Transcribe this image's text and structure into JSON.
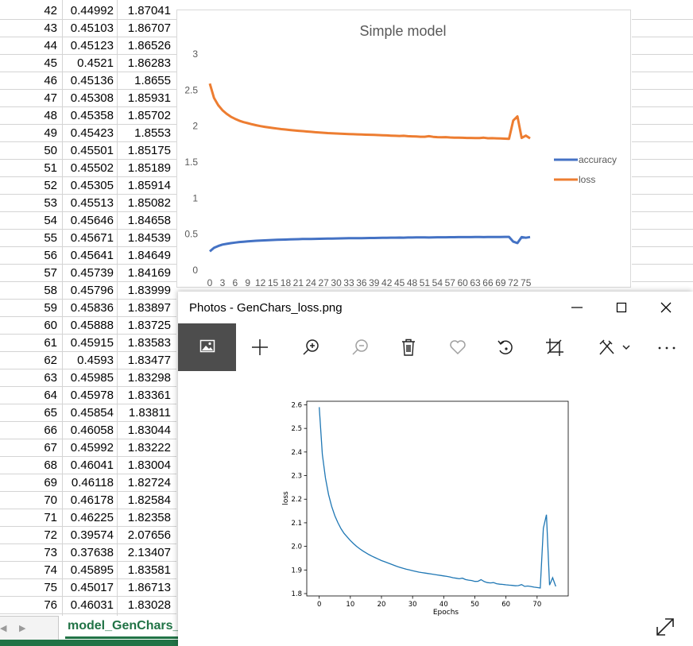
{
  "spreadsheet": {
    "rows": [
      [
        "42",
        "0.44992",
        "1.87041"
      ],
      [
        "43",
        "0.45103",
        "1.86707"
      ],
      [
        "44",
        "0.45123",
        "1.86526"
      ],
      [
        "45",
        "0.4521",
        "1.86283"
      ],
      [
        "46",
        "0.45136",
        "1.8655"
      ],
      [
        "47",
        "0.45308",
        "1.85931"
      ],
      [
        "48",
        "0.45358",
        "1.85702"
      ],
      [
        "49",
        "0.45423",
        "1.8553"
      ],
      [
        "50",
        "0.45501",
        "1.85175"
      ],
      [
        "51",
        "0.45502",
        "1.85189"
      ],
      [
        "52",
        "0.45305",
        "1.85914"
      ],
      [
        "53",
        "0.45513",
        "1.85082"
      ],
      [
        "54",
        "0.45646",
        "1.84658"
      ],
      [
        "55",
        "0.45671",
        "1.84539"
      ],
      [
        "56",
        "0.45641",
        "1.84649"
      ],
      [
        "57",
        "0.45739",
        "1.84169"
      ],
      [
        "58",
        "0.45796",
        "1.83999"
      ],
      [
        "59",
        "0.45836",
        "1.83897"
      ],
      [
        "60",
        "0.45888",
        "1.83725"
      ],
      [
        "61",
        "0.45915",
        "1.83583"
      ],
      [
        "62",
        "0.4593",
        "1.83477"
      ],
      [
        "63",
        "0.45985",
        "1.83298"
      ],
      [
        "64",
        "0.45978",
        "1.83361"
      ],
      [
        "65",
        "0.45854",
        "1.83811"
      ],
      [
        "66",
        "0.46058",
        "1.83044"
      ],
      [
        "67",
        "0.45992",
        "1.83222"
      ],
      [
        "68",
        "0.46041",
        "1.83004"
      ],
      [
        "69",
        "0.46118",
        "1.82724"
      ],
      [
        "70",
        "0.46178",
        "1.82584"
      ],
      [
        "71",
        "0.46225",
        "1.82358"
      ],
      [
        "72",
        "0.39574",
        "2.07656"
      ],
      [
        "73",
        "0.37638",
        "2.13407"
      ],
      [
        "74",
        "0.45895",
        "1.83581"
      ],
      [
        "75",
        "0.45017",
        "1.86713"
      ],
      [
        "76",
        "0.46031",
        "1.83028"
      ]
    ],
    "sheet_tab": "model_GenChars_",
    "tab_nav_prev_icon": "triangle-left-icon",
    "tab_nav_next_icon": "triangle-right-icon",
    "accent_color": "#217346"
  },
  "chart_data": [
    {
      "id": "excel",
      "type": "line",
      "title": "Simple model",
      "x": [
        0,
        1,
        2,
        3,
        4,
        5,
        6,
        7,
        8,
        9,
        10,
        11,
        12,
        13,
        14,
        15,
        16,
        17,
        18,
        19,
        20,
        21,
        22,
        23,
        24,
        25,
        26,
        27,
        28,
        29,
        30,
        31,
        32,
        33,
        34,
        35,
        36,
        37,
        38,
        39,
        40,
        41,
        42,
        43,
        44,
        45,
        46,
        47,
        48,
        49,
        50,
        51,
        52,
        53,
        54,
        55,
        56,
        57,
        58,
        59,
        60,
        61,
        62,
        63,
        64,
        65,
        66,
        67,
        68,
        69,
        70,
        71,
        72,
        73,
        74,
        75,
        76
      ],
      "x_tick_labels": [
        "0",
        "3",
        "6",
        "9",
        "12",
        "15",
        "18",
        "21",
        "24",
        "27",
        "30",
        "33",
        "36",
        "39",
        "42",
        "45",
        "48",
        "51",
        "54",
        "57",
        "60",
        "63",
        "66",
        "69",
        "72",
        "75"
      ],
      "ylim": [
        0,
        3
      ],
      "y_ticks": [
        "0",
        "0.5",
        "1",
        "1.5",
        "2",
        "2.5",
        "3"
      ],
      "legend_position": "right",
      "series": [
        {
          "name": "accuracy",
          "color": "#4472c4",
          "values": [
            0.26,
            0.31,
            0.335,
            0.355,
            0.365,
            0.375,
            0.383,
            0.39,
            0.395,
            0.4,
            0.404,
            0.408,
            0.411,
            0.414,
            0.417,
            0.419,
            0.421,
            0.423,
            0.425,
            0.427,
            0.429,
            0.43,
            0.432,
            0.433,
            0.434,
            0.435,
            0.436,
            0.437,
            0.438,
            0.439,
            0.44,
            0.441,
            0.442,
            0.443,
            0.444,
            0.444,
            0.445,
            0.446,
            0.447,
            0.447,
            0.448,
            0.449,
            0.44992,
            0.45103,
            0.45123,
            0.4521,
            0.45136,
            0.45308,
            0.45358,
            0.45423,
            0.45501,
            0.45502,
            0.45305,
            0.45513,
            0.45646,
            0.45671,
            0.45641,
            0.45739,
            0.45796,
            0.45836,
            0.45888,
            0.45915,
            0.4593,
            0.45985,
            0.45978,
            0.45854,
            0.46058,
            0.45992,
            0.46041,
            0.46118,
            0.46178,
            0.46225,
            0.39574,
            0.37638,
            0.45895,
            0.45017,
            0.46031
          ]
        },
        {
          "name": "loss",
          "color": "#ed7d31",
          "values": [
            2.59,
            2.39,
            2.29,
            2.22,
            2.17,
            2.13,
            2.1,
            2.075,
            2.055,
            2.04,
            2.025,
            2.012,
            2.0,
            1.99,
            1.981,
            1.973,
            1.965,
            1.958,
            1.952,
            1.946,
            1.94,
            1.935,
            1.93,
            1.925,
            1.92,
            1.915,
            1.911,
            1.907,
            1.903,
            1.9,
            1.897,
            1.894,
            1.891,
            1.889,
            1.887,
            1.885,
            1.883,
            1.881,
            1.879,
            1.877,
            1.875,
            1.873,
            1.87041,
            1.86707,
            1.86526,
            1.86283,
            1.8655,
            1.85931,
            1.85702,
            1.8553,
            1.85175,
            1.85189,
            1.85914,
            1.85082,
            1.84658,
            1.84539,
            1.84649,
            1.84169,
            1.83999,
            1.83897,
            1.83725,
            1.83583,
            1.83477,
            1.83298,
            1.83361,
            1.83811,
            1.83044,
            1.83222,
            1.83004,
            1.82724,
            1.82584,
            1.82358,
            2.07656,
            2.13407,
            1.83581,
            1.86713,
            1.83028
          ]
        }
      ]
    },
    {
      "id": "photo",
      "type": "line",
      "title": "",
      "xlabel": "Epochs",
      "ylabel": "loss",
      "xlim": [
        -4,
        80
      ],
      "ylim": [
        1.79,
        2.615
      ],
      "x_ticks": [
        0,
        10,
        20,
        30,
        40,
        50,
        60,
        70
      ],
      "x_tick_labels": [
        "0",
        "10",
        "20",
        "30",
        "40",
        "50",
        "60",
        "70"
      ],
      "y_ticks": [
        1.8,
        1.9,
        2.0,
        2.1,
        2.2,
        2.3,
        2.4,
        2.5,
        2.6
      ],
      "y_tick_labels": [
        "1.8",
        "1.9",
        "2.0",
        "2.1",
        "2.2",
        "2.3",
        "2.4",
        "2.5",
        "2.6"
      ],
      "series": [
        {
          "name": "",
          "color": "#1f77b4",
          "ref_values": "loss"
        }
      ]
    }
  ],
  "photos_window": {
    "title": "Photos - GenChars_loss.png",
    "window_buttons": {
      "minimize": "minimize-icon",
      "maximize": "maximize-icon",
      "close": "close-icon"
    },
    "toolbar": [
      "image-icon",
      "add-icon",
      "zoom-in-icon",
      "zoom-out-icon",
      "delete-icon",
      "favorite-icon",
      "rotate-icon",
      "crop-icon",
      "edit-icon",
      "more-icon"
    ],
    "expand_icon": "expand-icon"
  }
}
